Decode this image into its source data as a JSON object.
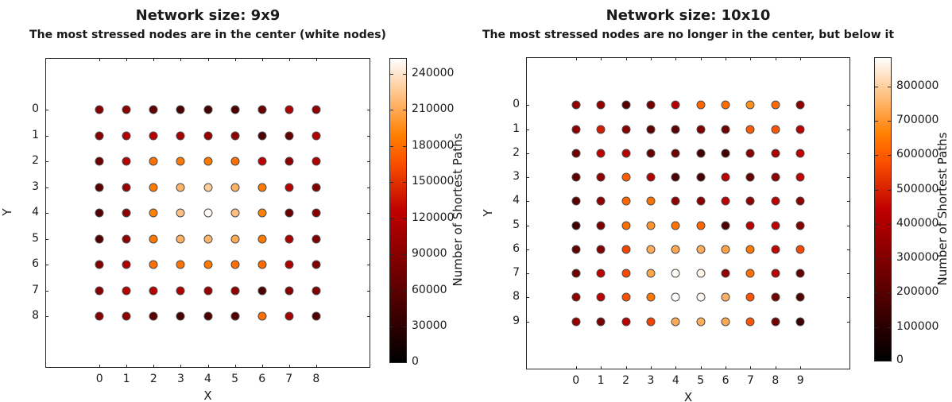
{
  "chart_data": [
    {
      "type": "scatter",
      "title": "Network size: 9x9",
      "subtitle": "The most stressed nodes are in the center (white nodes)",
      "xlabel": "X",
      "ylabel": "Y",
      "colorbar_label": "Number of Shortest Paths",
      "colormap": "gist_heat",
      "x_ticks": [
        0,
        1,
        2,
        3,
        4,
        5,
        6,
        7,
        8
      ],
      "y_ticks": [
        0,
        1,
        2,
        3,
        4,
        5,
        6,
        7,
        8
      ],
      "xlim": [
        -2,
        10
      ],
      "ylim": [
        -2,
        10
      ],
      "y_axis_inverted": true,
      "vmin": 0,
      "vmax": 253000,
      "colorbar_ticks": [
        0,
        30000,
        60000,
        90000,
        120000,
        150000,
        180000,
        210000,
        240000
      ],
      "values": [
        [
          89000,
          93000,
          67000,
          50000,
          45000,
          50000,
          70000,
          115000,
          95000
        ],
        [
          90000,
          118000,
          122000,
          112000,
          101000,
          96000,
          50000,
          66000,
          117000
        ],
        [
          76000,
          121000,
          182000,
          186000,
          186000,
          181000,
          126000,
          96000,
          116000
        ],
        [
          62000,
          101000,
          187000,
          216000,
          228000,
          215000,
          186000,
          121000,
          86000
        ],
        [
          56000,
          96000,
          191000,
          222000,
          251000,
          221000,
          191000,
          71000,
          91000
        ],
        [
          56000,
          96000,
          186000,
          214000,
          217000,
          211000,
          186000,
          116000,
          86000
        ],
        [
          86000,
          116000,
          181000,
          183000,
          186000,
          181000,
          179000,
          116000,
          86000
        ],
        [
          91000,
          121000,
          121000,
          116000,
          101000,
          96000,
          50000,
          91000,
          86000
        ],
        [
          91000,
          96000,
          61000,
          48000,
          51000,
          56000,
          181000,
          111000,
          56000
        ]
      ]
    },
    {
      "type": "scatter",
      "title": "Network size: 10x10",
      "subtitle": "The most stressed nodes are no longer in the center, but below it",
      "xlabel": "X",
      "ylabel": "Y",
      "colorbar_label": "Number of Shortest Paths",
      "colormap": "gist_heat",
      "x_ticks": [
        0,
        1,
        2,
        3,
        4,
        5,
        6,
        7,
        8,
        9
      ],
      "y_ticks": [
        0,
        1,
        2,
        3,
        4,
        5,
        6,
        7,
        8,
        9
      ],
      "xlim": [
        -2,
        11
      ],
      "ylim": [
        -2,
        11
      ],
      "y_axis_inverted": true,
      "vmin": 0,
      "vmax": 885000,
      "colorbar_ticks": [
        0,
        100000,
        200000,
        300000,
        400000,
        500000,
        600000,
        700000,
        800000
      ],
      "values": [
        [
          340000,
          345000,
          200000,
          265000,
          420000,
          620000,
          630000,
          690000,
          625000,
          330000
        ],
        [
          335000,
          490000,
          310000,
          225000,
          215000,
          295000,
          265000,
          600000,
          590000,
          430000
        ],
        [
          265000,
          435000,
          425000,
          235000,
          255000,
          165000,
          155000,
          315000,
          405000,
          445000
        ],
        [
          225000,
          340000,
          600000,
          420000,
          175000,
          170000,
          430000,
          240000,
          330000,
          450000
        ],
        [
          210000,
          330000,
          620000,
          640000,
          330000,
          320000,
          430000,
          330000,
          440000,
          330000
        ],
        [
          150000,
          290000,
          630000,
          700000,
          640000,
          620000,
          185000,
          430000,
          440000,
          310000
        ],
        [
          230000,
          300000,
          560000,
          740000,
          730000,
          740000,
          720000,
          650000,
          450000,
          570000
        ],
        [
          265000,
          430000,
          570000,
          730000,
          875000,
          870000,
          340000,
          640000,
          430000,
          230000
        ],
        [
          330000,
          440000,
          580000,
          650000,
          880000,
          875000,
          750000,
          590000,
          270000,
          200000
        ],
        [
          350000,
          280000,
          430000,
          560000,
          740000,
          745000,
          735000,
          590000,
          270000,
          140000
        ]
      ]
    }
  ]
}
